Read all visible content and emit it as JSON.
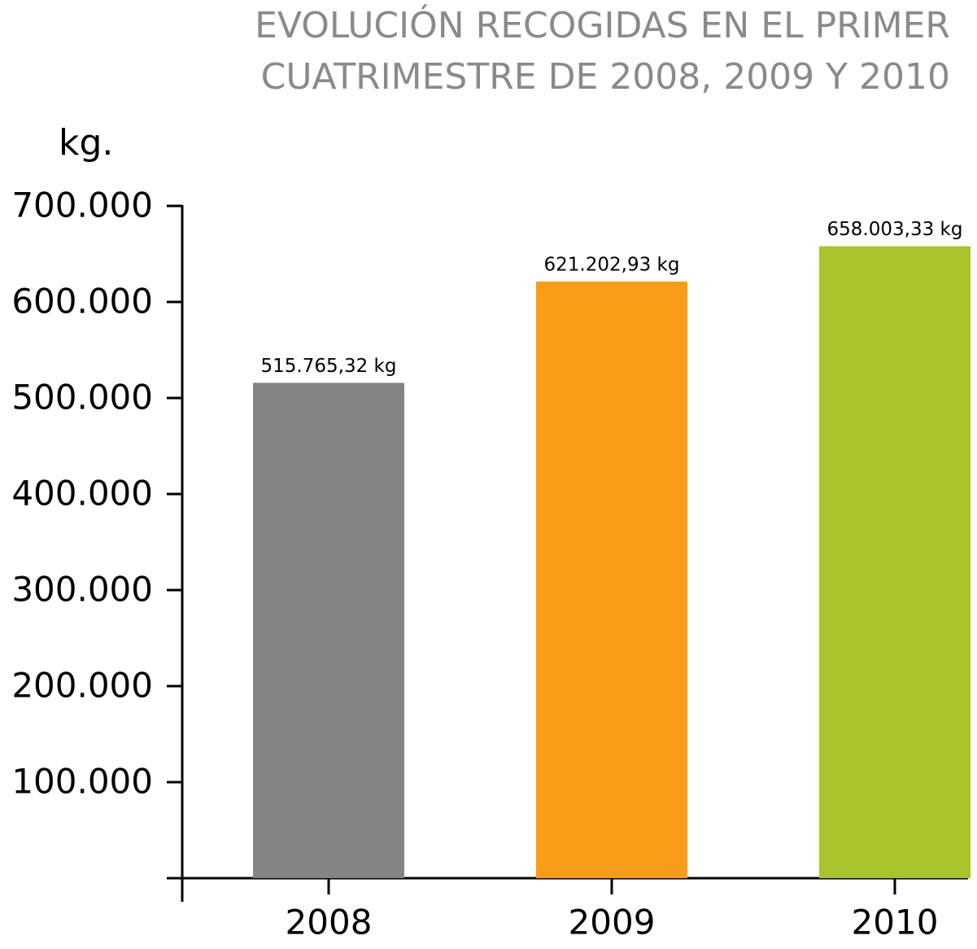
{
  "chart_data": {
    "type": "bar",
    "title": [
      "EVOLUCIÓN RECOGIDAS EN EL PRIMER",
      "CUATRIMESTRE DE 2008, 2009 Y 2010"
    ],
    "y_label": "kg.",
    "categories": [
      "2008",
      "2009",
      "2010"
    ],
    "values": [
      515765.32,
      621202.93,
      658003.33
    ],
    "value_labels": [
      "515.765,32 kg",
      "621.202,93 kg",
      "658.003,33 kg"
    ],
    "colors": [
      "#858482",
      "#f99c17",
      "#a8c42a"
    ],
    "ylim": [
      0,
      700000
    ],
    "yticks": [
      {
        "value": 100000,
        "label": "100.000"
      },
      {
        "value": 200000,
        "label": "200.000"
      },
      {
        "value": 300000,
        "label": "300.000"
      },
      {
        "value": 400000,
        "label": "400.000"
      },
      {
        "value": 500000,
        "label": "500.000"
      },
      {
        "value": 600000,
        "label": "600.000"
      },
      {
        "value": 700000,
        "label": "700.000"
      }
    ]
  }
}
